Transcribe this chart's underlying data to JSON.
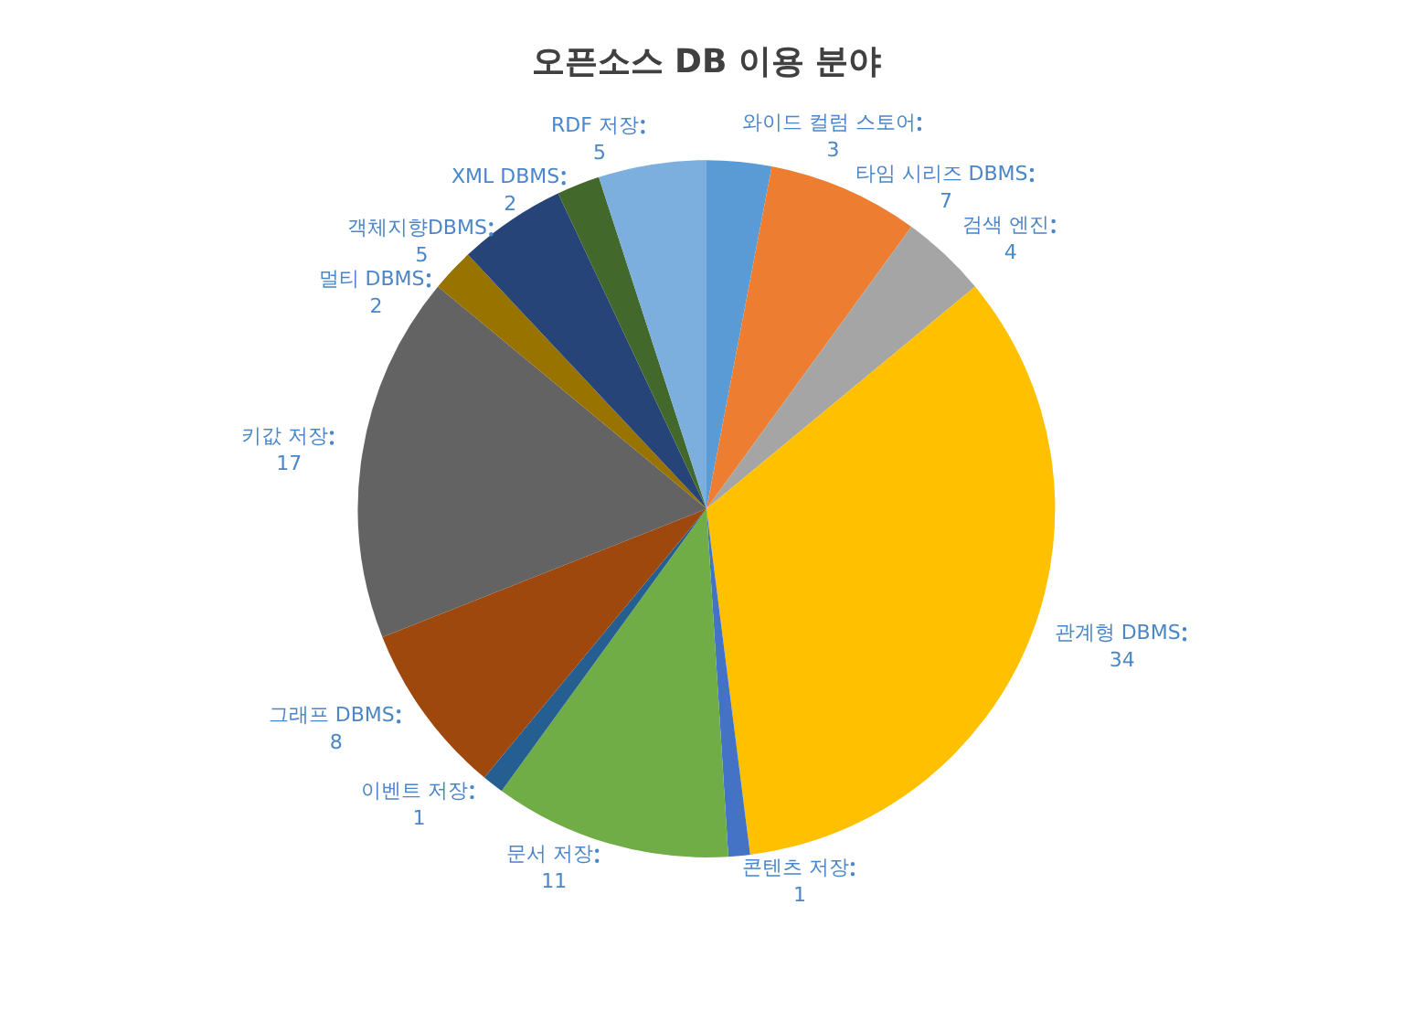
{
  "chart_data": {
    "type": "pie",
    "title": "오픈소스 DB 이용 분야",
    "categories": [
      "와이드 컬럼 스토어",
      "타임 시리즈 DBMS",
      "검색 엔진",
      "관계형 DBMS",
      "콘텐츠 저장",
      "문서 저장",
      "이벤트 저장",
      "그래프 DBMS",
      "키값 저장",
      "멀티 DBMS",
      "객체지향DBMS",
      "XML DBMS",
      "RDF 저장"
    ],
    "values": [
      3,
      7,
      4,
      34,
      1,
      11,
      1,
      8,
      17,
      2,
      5,
      2,
      5
    ],
    "colors": [
      "#5b9bd5",
      "#ed7d31",
      "#a5a5a5",
      "#ffc000",
      "#4472c4",
      "#70ad47",
      "#255e91",
      "#9e480e",
      "#636363",
      "#997300",
      "#264478",
      "#43682b",
      "#7cafdd"
    ],
    "data_labels": true,
    "legend": false
  }
}
